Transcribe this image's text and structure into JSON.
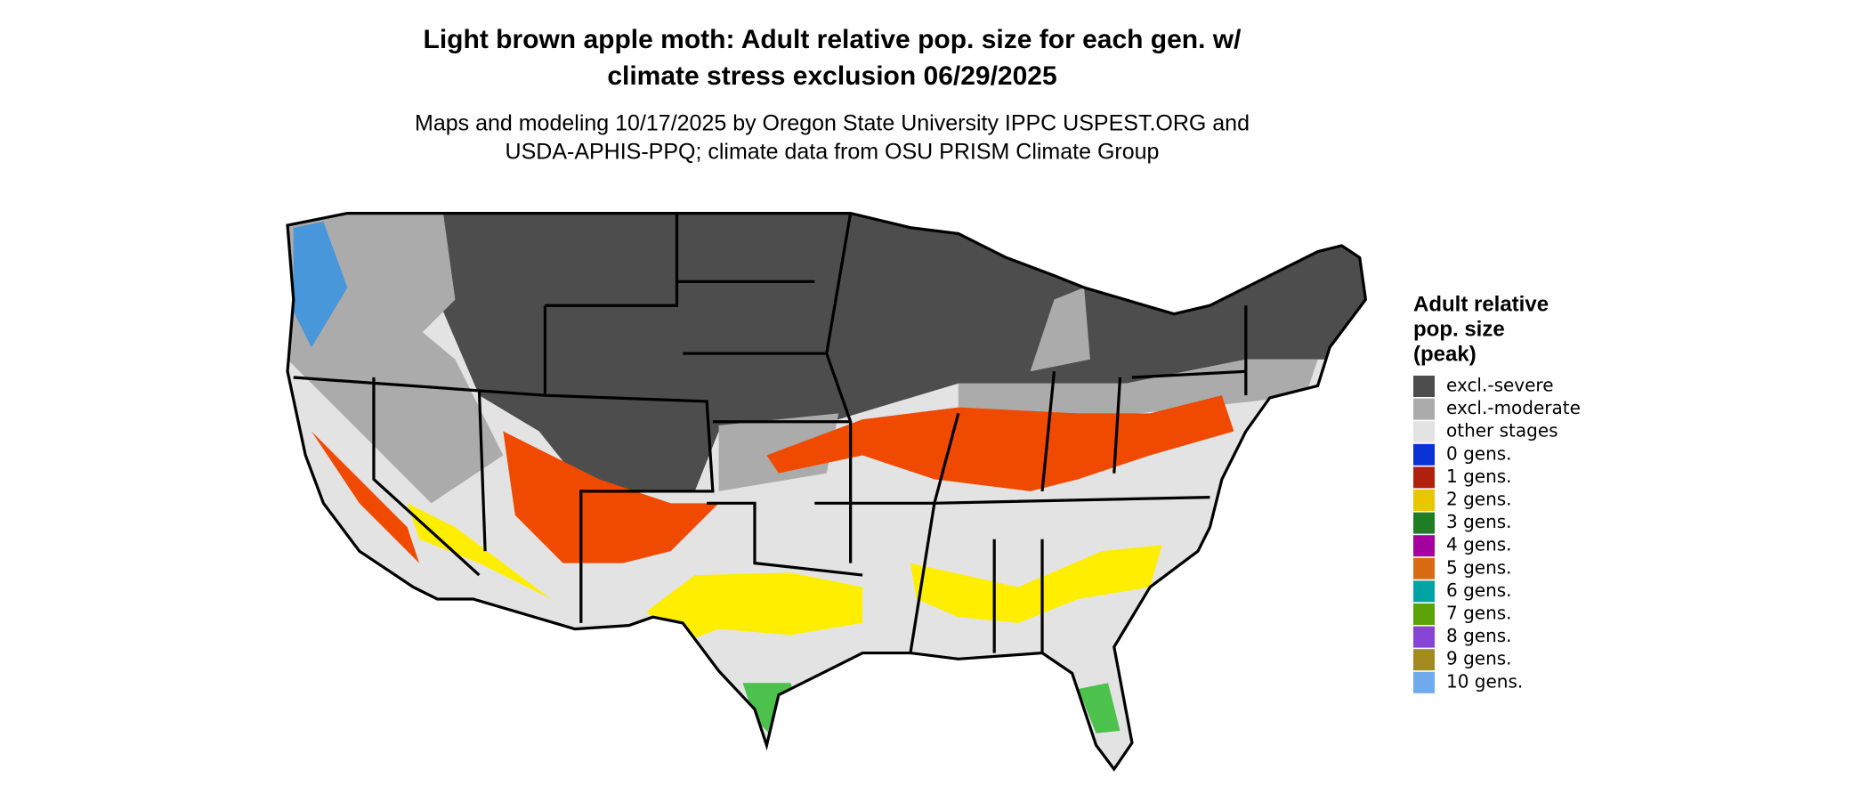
{
  "header": {
    "title": [
      "Light brown apple moth: Adult relative pop. size for each gen. w/",
      "climate stress exclusion 06/29/2025"
    ],
    "subtitle": [
      "Maps and modeling 10/17/2025 by Oregon State University IPPC USPEST.ORG and",
      "USDA-APHIS-PPQ; climate data from OSU PRISM Climate Group"
    ]
  },
  "legend": {
    "title": [
      "Adult relative",
      "pop. size",
      "(peak)"
    ],
    "items": [
      {
        "label": "excl.-severe",
        "color": "#4d4d4d"
      },
      {
        "label": "excl.-moderate",
        "color": "#ababab"
      },
      {
        "label": "other stages",
        "color": "#e3e3e3"
      },
      {
        "label": "0 gens.",
        "color": "#0a31d6"
      },
      {
        "label": "1 gens.",
        "color": "#b0200f"
      },
      {
        "label": "2 gens.",
        "color": "#e8c700"
      },
      {
        "label": "3 gens.",
        "color": "#1f7d24"
      },
      {
        "label": "4 gens.",
        "color": "#a3009e"
      },
      {
        "label": "5 gens.",
        "color": "#d96b14"
      },
      {
        "label": "6 gens.",
        "color": "#00a3a3"
      },
      {
        "label": "7 gens.",
        "color": "#5ca30a"
      },
      {
        "label": "8 gens.",
        "color": "#8844d6"
      },
      {
        "label": "9 gens.",
        "color": "#a38a1f"
      },
      {
        "label": "10 gens.",
        "color": "#6eaaec"
      }
    ]
  }
}
